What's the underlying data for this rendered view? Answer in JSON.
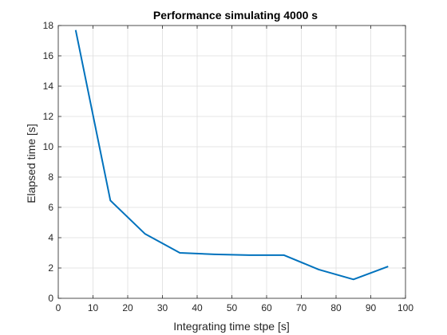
{
  "chart_data": {
    "type": "line",
    "title": "Performance simulating 4000 s",
    "xlabel": "Integrating time stpe [s]",
    "ylabel": "Elapsed time [s]",
    "xlim": [
      0,
      100
    ],
    "ylim": [
      0,
      18
    ],
    "xticks": [
      "0",
      "10",
      "20",
      "30",
      "40",
      "50",
      "60",
      "70",
      "80",
      "90",
      "100"
    ],
    "yticks": [
      "0",
      "2",
      "4",
      "6",
      "8",
      "10",
      "12",
      "14",
      "16",
      "18"
    ],
    "grid": true,
    "series": [
      {
        "color": "#0072BD",
        "x": [
          5,
          15,
          25,
          35,
          45,
          55,
          65,
          75,
          85,
          95
        ],
        "y": [
          17.7,
          6.45,
          4.25,
          3.0,
          2.9,
          2.85,
          2.85,
          1.9,
          1.25,
          2.1
        ]
      }
    ]
  }
}
